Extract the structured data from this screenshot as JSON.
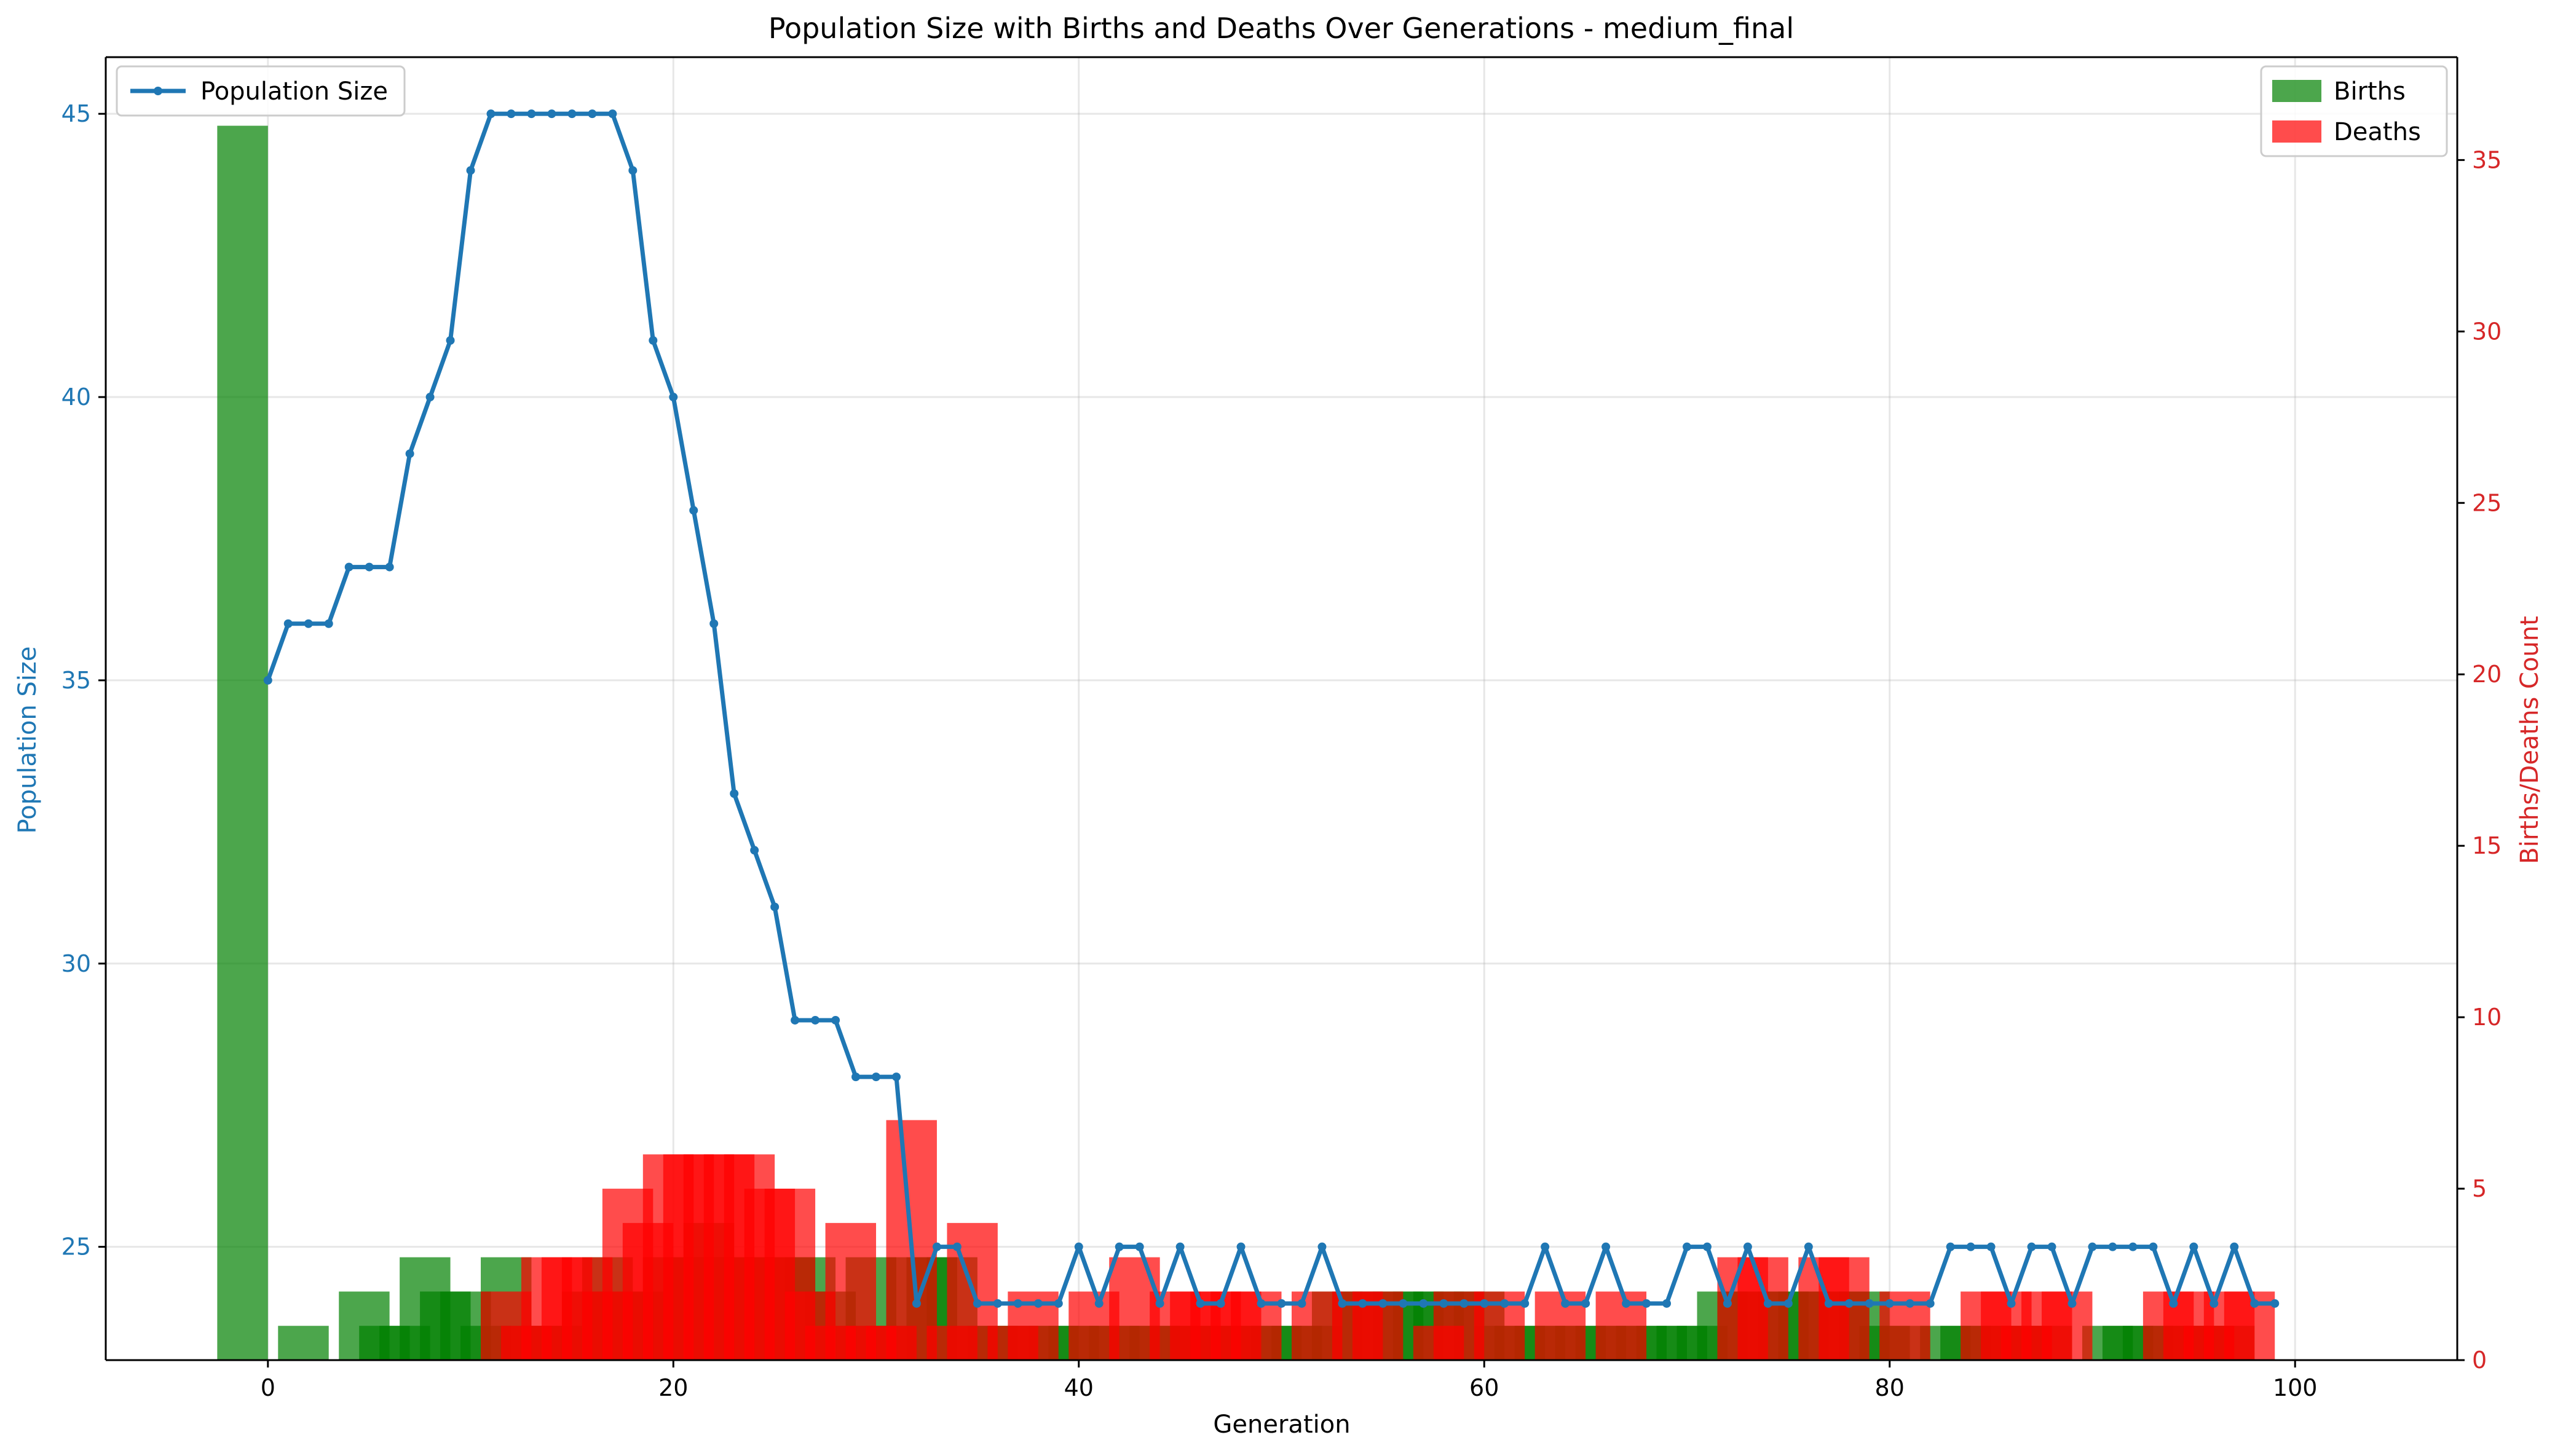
{
  "chart_data": {
    "type": "line+bar",
    "title": "Population Size with Births and Deaths Over Generations - medium_final",
    "xlabel": "Generation",
    "ylabel_left": "Population Size",
    "ylabel_right": "Births/Deaths Count",
    "xlim": [
      -8,
      108
    ],
    "ylim_left": [
      23,
      46
    ],
    "ylim_right": [
      0,
      38
    ],
    "x_ticks": [
      0,
      20,
      40,
      60,
      80,
      100
    ],
    "y_left_ticks": [
      25,
      30,
      35,
      40,
      45
    ],
    "y_right_ticks": [
      0,
      5,
      10,
      15,
      20,
      25,
      30,
      35
    ],
    "grid": true,
    "legend_left_position": "upper-left",
    "legend_right_position": "upper-right",
    "colors": {
      "population": "#1f77b4",
      "births": "#008000",
      "deaths": "#ff0000",
      "right_axis": "#d62728"
    },
    "population": {
      "name": "Population Size",
      "x": [
        0,
        1,
        2,
        3,
        4,
        5,
        6,
        7,
        8,
        9,
        10,
        11,
        12,
        13,
        14,
        15,
        16,
        17,
        18,
        19,
        20,
        21,
        22,
        23,
        24,
        25,
        26,
        27,
        28,
        29,
        30,
        31,
        32,
        33,
        34,
        35,
        36,
        37,
        38,
        39,
        40,
        41,
        42,
        43,
        44,
        45,
        46,
        47,
        48,
        49,
        50,
        51,
        52,
        53,
        54,
        55,
        56,
        57,
        58,
        59,
        60,
        61,
        62,
        63,
        64,
        65,
        66,
        67,
        68,
        69,
        70,
        71,
        72,
        73,
        74,
        75,
        76,
        77,
        78,
        79,
        80,
        81,
        82,
        83,
        84,
        85,
        86,
        87,
        88,
        89,
        90,
        91,
        92,
        93,
        94,
        95,
        96,
        97,
        98,
        99
      ],
      "y": [
        35,
        36,
        36,
        36,
        37,
        37,
        37,
        39,
        40,
        41,
        44,
        45,
        45,
        45,
        45,
        45,
        45,
        45,
        44,
        41,
        40,
        38,
        36,
        33,
        32,
        31,
        29,
        29,
        29,
        28,
        28,
        28,
        24,
        25,
        25,
        24,
        24,
        24,
        24,
        24,
        25,
        24,
        25,
        25,
        24,
        25,
        24,
        24,
        25,
        24,
        24,
        24,
        25,
        24,
        24,
        24,
        24,
        24,
        24,
        24,
        24,
        24,
        24,
        25,
        24,
        24,
        25,
        24,
        24,
        24,
        25,
        25,
        24,
        25,
        24,
        24,
        25,
        24,
        24,
        24,
        24,
        24,
        24,
        25,
        25,
        25,
        24,
        25,
        25,
        24,
        25,
        25,
        25,
        25,
        24,
        25,
        24,
        25,
        24,
        24
      ]
    },
    "births": {
      "name": "Births",
      "bar_width": 2.5,
      "x": [
        -1.25,
        1.75,
        4.75,
        5.75,
        6.75,
        7.75,
        8.75,
        9.75,
        10.75,
        11.75,
        12.75,
        13.75,
        14.75,
        15.75,
        16.75,
        17.75,
        18.75,
        19.75,
        20.75,
        21.75,
        22.75,
        23.75,
        24.75,
        25.75,
        26.75,
        27.75,
        28.75,
        29.75,
        30.75,
        31.75,
        32.75,
        33.75,
        34.75,
        35.75,
        36.75,
        37.75,
        38.75,
        39.75,
        40.75,
        41.75,
        42.75,
        43.75,
        44.75,
        45.75,
        46.75,
        47.75,
        48.75,
        49.75,
        50.75,
        51.75,
        52.75,
        53.75,
        54.75,
        55.75,
        56.75,
        57.75,
        58.75,
        59.75,
        60.75,
        61.75,
        62.75,
        63.75,
        64.75,
        65.75,
        66.75,
        67.75,
        68.75,
        69.75,
        70.75,
        71.75,
        72.75,
        73.75,
        74.75,
        75.75,
        76.75,
        77.75,
        78.75,
        79.75,
        80.75,
        82.75,
        83.75,
        84.75,
        85.75,
        86.75,
        87.75,
        90.75,
        91.75,
        92.75,
        93.75,
        94.75,
        95.75,
        96.75
      ],
      "values": [
        36,
        1,
        2,
        1,
        1,
        3,
        2,
        2,
        1,
        3,
        1,
        1,
        1,
        2,
        3,
        2,
        2,
        3,
        3,
        4,
        3,
        3,
        3,
        3,
        3,
        2,
        1,
        3,
        1,
        3,
        3,
        3,
        1,
        1,
        1,
        1,
        1,
        1,
        1,
        1,
        1,
        1,
        1,
        1,
        1,
        1,
        1,
        1,
        1,
        1,
        2,
        2,
        2,
        2,
        2,
        2,
        2,
        2,
        1,
        1,
        1,
        1,
        1,
        1,
        1,
        1,
        1,
        1,
        1,
        2,
        2,
        2,
        2,
        2,
        2,
        2,
        2,
        1,
        1,
        1,
        1,
        1,
        1,
        1,
        1,
        1,
        1,
        1,
        1,
        1,
        1,
        1
      ]
    },
    "deaths": {
      "name": "Deaths",
      "bar_width": 2.5,
      "x": [
        11.75,
        12.75,
        13.75,
        14.75,
        15.75,
        16.75,
        17.75,
        18.75,
        19.75,
        20.75,
        21.75,
        22.75,
        23.75,
        24.75,
        25.75,
        26.75,
        27.75,
        28.75,
        29.75,
        30.75,
        31.75,
        33.75,
        34.75,
        36.75,
        37.75,
        40.75,
        42.75,
        44.75,
        45.75,
        46.75,
        47.75,
        48.75,
        51.75,
        53.75,
        54.75,
        57.75,
        58.75,
        60.75,
        63.75,
        66.75,
        72.75,
        73.75,
        76.75,
        77.75,
        80.75,
        84.75,
        85.75,
        86.75,
        87.75,
        88.75,
        93.75,
        94.75,
        95.75,
        96.75,
        97.75
      ],
      "values": [
        2,
        1,
        3,
        3,
        3,
        2,
        5,
        4,
        6,
        6,
        6,
        6,
        6,
        5,
        5,
        2,
        1,
        4,
        1,
        1,
        7,
        1,
        4,
        1,
        2,
        2,
        3,
        2,
        2,
        2,
        2,
        2,
        2,
        2,
        2,
        1,
        2,
        2,
        2,
        2,
        3,
        3,
        3,
        3,
        2,
        2,
        2,
        1,
        2,
        2,
        2,
        2,
        1,
        2,
        2
      ]
    }
  }
}
